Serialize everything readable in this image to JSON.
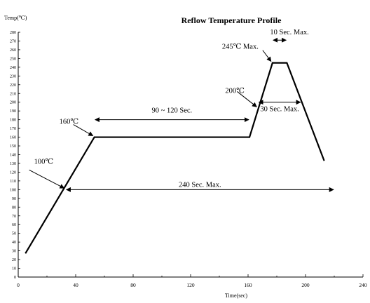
{
  "chart_data": {
    "type": "line",
    "title": "Reflow Temperature Profile",
    "ylabel": "Temp(℃)",
    "xlabel": "Time(sec)",
    "xlim": [
      0,
      240
    ],
    "ylim": [
      0,
      280
    ],
    "x_ticks": [
      0,
      40,
      80,
      120,
      160,
      200,
      240
    ],
    "x_tick_labels": [
      "0",
      "40",
      "80",
      "120",
      "160",
      "200",
      "240"
    ],
    "y_ticks": [
      0,
      10,
      20,
      30,
      40,
      50,
      60,
      70,
      80,
      90,
      100,
      110,
      120,
      130,
      140,
      150,
      160,
      170,
      180,
      190,
      200,
      210,
      220,
      230,
      240,
      250,
      260,
      270,
      280
    ],
    "y_tick_labels": [
      "0",
      "10",
      "20",
      "30",
      "40",
      "50",
      "60",
      "70",
      "80",
      "90",
      "100",
      "110",
      "120",
      "130",
      "140",
      "150",
      "160",
      "170",
      "180",
      "190",
      "200",
      "210",
      "220",
      "230",
      "240",
      "250",
      "260",
      "270",
      "280"
    ],
    "grid": false,
    "series": [
      {
        "x": [
          5,
          53,
          161,
          177,
          187,
          213
        ],
        "y": [
          27,
          160,
          160,
          245,
          245,
          133
        ]
      }
    ],
    "annotations": [
      {
        "text": "100℃",
        "arrow_to": [
          33,
          100
        ]
      },
      {
        "text": "160℃",
        "arrow_to": [
          53,
          160
        ]
      },
      {
        "text": "200℃",
        "arrow_to": [
          167,
          193
        ]
      },
      {
        "text": "245℃ Max.",
        "arrow_to": [
          177,
          245
        ]
      }
    ],
    "spans": [
      {
        "text": "90 ~ 120 Sec.",
        "x0": 53,
        "x1": 161,
        "y": 180
      },
      {
        "text": "240 Sec. Max.",
        "x0": 33,
        "x1": 220,
        "y": 100
      },
      {
        "text": "10 Sec. Max.",
        "x0": 177,
        "x1": 187,
        "y": 271
      },
      {
        "text": "30 Sec. Max.",
        "x0": 167,
        "x1": 197,
        "y": 200
      }
    ]
  }
}
